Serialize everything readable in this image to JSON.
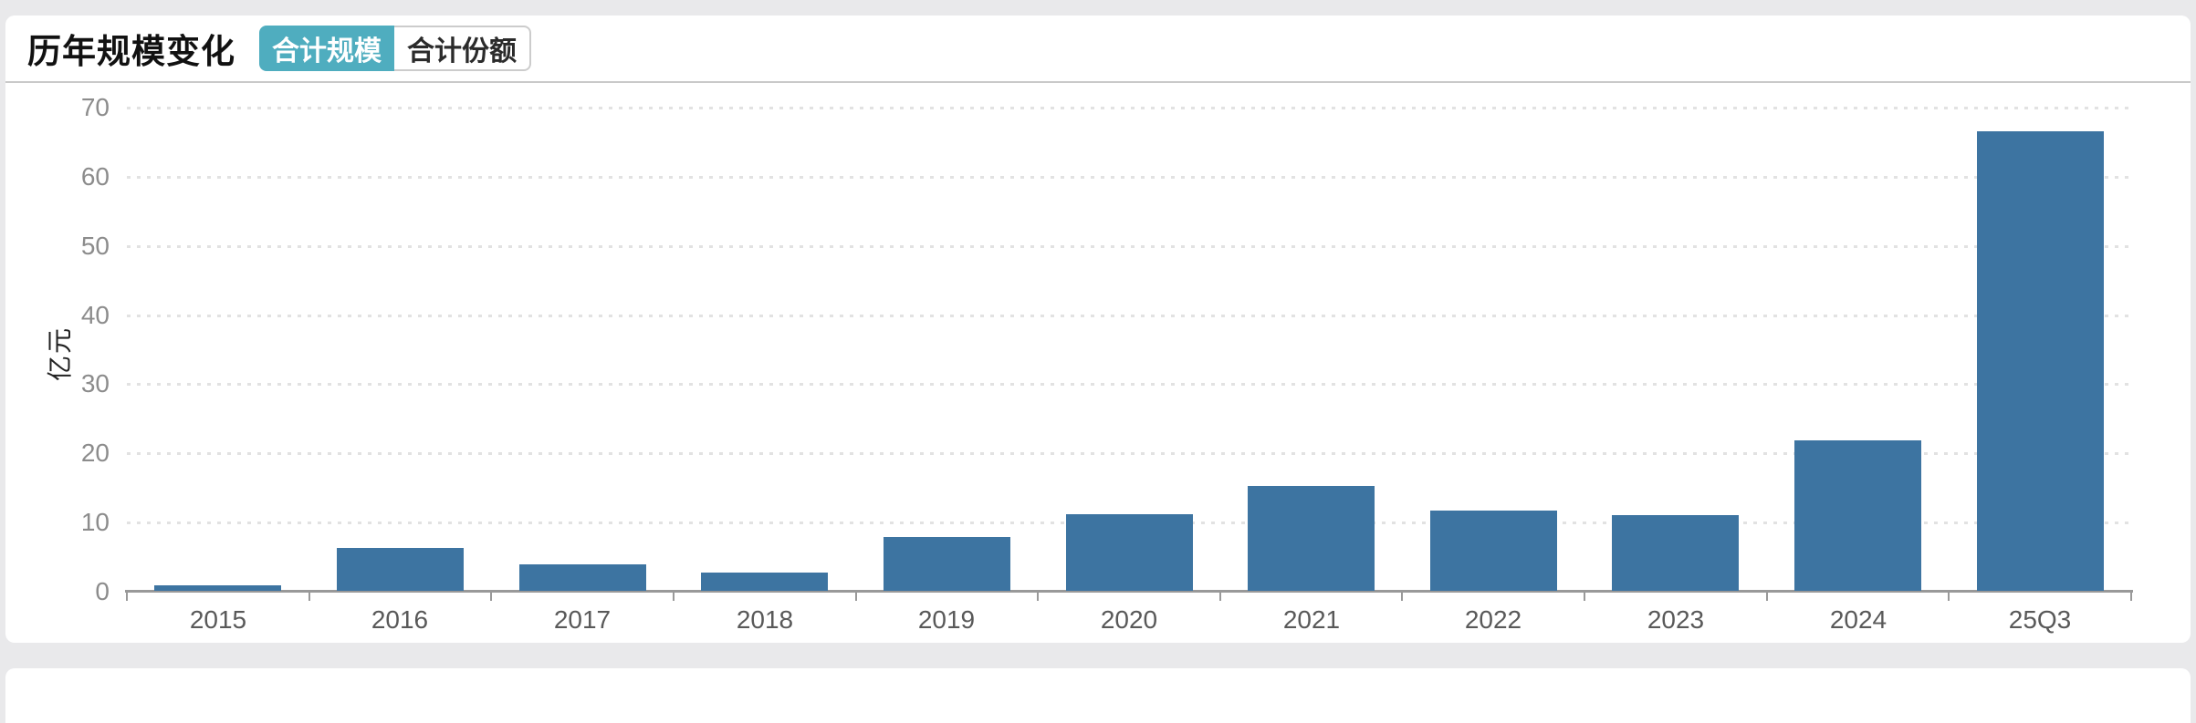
{
  "page": {
    "background": "#e9e9eb"
  },
  "header": {
    "title": "历年规模变化",
    "tabs": [
      {
        "label": "合计规模",
        "active": true
      },
      {
        "label": "合计份额",
        "active": false
      }
    ]
  },
  "colors": {
    "accent_teal": "#4fadbf",
    "bar_blue": "#3d74a1",
    "grid_gray": "#e2e2e2",
    "axis_gray": "#999999"
  },
  "chart_data": {
    "type": "bar",
    "title": "历年规模变化",
    "categories": [
      "2015",
      "2016",
      "2017",
      "2018",
      "2019",
      "2020",
      "2021",
      "2022",
      "2023",
      "2024",
      "25Q3"
    ],
    "values": [
      0.8,
      6.2,
      3.8,
      2.6,
      7.8,
      11.1,
      15.1,
      11.6,
      10.9,
      21.7,
      66.5
    ],
    "ylabel": "亿元",
    "xlabel": "",
    "ylim": [
      0,
      70
    ],
    "yticks": [
      0,
      10,
      20,
      30,
      40,
      50,
      60,
      70
    ],
    "grid": "dotted-horizontal",
    "legend": "none",
    "bar_color": "#3d74a1"
  }
}
